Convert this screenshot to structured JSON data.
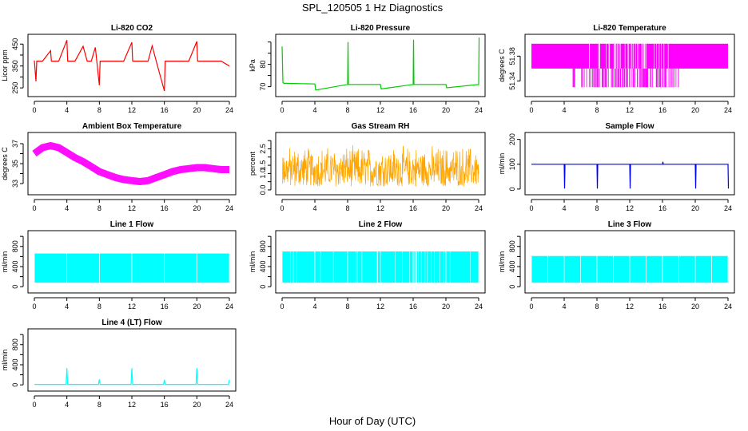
{
  "figure": {
    "title": "SPL_120505  1 Hz Diagnostics",
    "xlabel": "Hour of Day (UTC)"
  },
  "chart_data": [
    {
      "type": "line",
      "title": "Li-820 CO2",
      "ylabel": "Licor ppm",
      "color": "#ff0000",
      "xlim": [
        0,
        24
      ],
      "ylim": [
        225,
        480
      ],
      "xticks": [
        0,
        4,
        8,
        12,
        16,
        20,
        24
      ],
      "yticks": [
        250,
        300,
        350,
        400,
        450
      ],
      "yticklabels": [
        "250",
        "",
        "350",
        "",
        "450"
      ],
      "series": [
        {
          "x": [
            0,
            0.2,
            0.3,
            0.5,
            1,
            2,
            2.1,
            3,
            4,
            4.1,
            5,
            6,
            6.5,
            7,
            7.5,
            8,
            8.1,
            9,
            10,
            11,
            12,
            12.1,
            13,
            14,
            14.5,
            15,
            16,
            16.1,
            17,
            18,
            19,
            20,
            20.1,
            21,
            22,
            23,
            24
          ],
          "y": [
            375,
            280,
            372,
            372,
            372,
            420,
            372,
            372,
            468,
            372,
            372,
            440,
            372,
            372,
            435,
            262,
            372,
            372,
            372,
            372,
            458,
            372,
            372,
            372,
            442,
            372,
            236,
            372,
            372,
            372,
            372,
            462,
            372,
            372,
            372,
            372,
            350
          ]
        }
      ]
    },
    {
      "type": "line",
      "title": "Li-820 Pressure",
      "ylabel": "kPa",
      "color": "#00cc00",
      "xlim": [
        0,
        24
      ],
      "ylim": [
        67,
        92
      ],
      "xticks": [
        0,
        4,
        8,
        12,
        16,
        20,
        24
      ],
      "yticks": [
        70,
        75,
        80,
        85,
        90
      ],
      "yticklabels": [
        "70",
        "",
        "80",
        "",
        ""
      ],
      "series": [
        {
          "x": [
            0,
            0.1,
            0.2,
            0.5,
            4,
            4.1,
            8,
            8.05,
            8.1,
            12,
            12.1,
            16,
            16.05,
            16.1,
            20,
            20.1,
            24,
            24.05
          ],
          "y": [
            88,
            72,
            71.5,
            71.5,
            71.2,
            68.5,
            71.0,
            90,
            71.0,
            71.0,
            69,
            71.0,
            91,
            71.0,
            71.0,
            69.5,
            71.0,
            92
          ]
        }
      ]
    },
    {
      "type": "line",
      "title": "Li-820 Temperature",
      "ylabel": "degrees C",
      "color": "#ff00ff",
      "xlim": [
        0,
        24
      ],
      "ylim": [
        51.32,
        51.41
      ],
      "xticks": [
        0,
        4,
        8,
        12,
        16,
        20,
        24
      ],
      "yticks": [
        51.34,
        51.38
      ],
      "yticklabels": [
        "51.34",
        "51.38"
      ],
      "series": [
        {
          "x": [
            0,
            24
          ],
          "y": [
            51.36,
            51.4
          ],
          "band": true
        }
      ]
    },
    {
      "type": "line",
      "title": "Ambient Box Temperature",
      "ylabel": "degrees C",
      "color": "#ff00ff",
      "xlim": [
        0,
        24
      ],
      "ylim": [
        32.2,
        37.8
      ],
      "xticks": [
        0,
        4,
        8,
        12,
        16,
        20,
        24
      ],
      "yticks": [
        33,
        34,
        35,
        36,
        37
      ],
      "yticklabels": [
        "33",
        "",
        "35",
        "",
        "37"
      ],
      "series": [
        {
          "x": [
            0,
            1,
            2,
            3,
            4,
            5,
            6,
            7,
            8,
            9,
            10,
            11,
            12,
            13,
            14,
            15,
            16,
            17,
            18,
            19,
            20,
            21,
            22,
            23,
            24
          ],
          "y": [
            36.0,
            36.6,
            36.8,
            36.6,
            36.1,
            35.6,
            35.2,
            34.7,
            34.2,
            33.9,
            33.6,
            33.4,
            33.3,
            33.2,
            33.3,
            33.6,
            33.9,
            34.2,
            34.4,
            34.5,
            34.6,
            34.6,
            34.5,
            34.4,
            34.4
          ]
        }
      ]
    },
    {
      "type": "line",
      "title": "Gas Stream RH",
      "ylabel": "percent",
      "color": "#ffa500",
      "xlim": [
        0,
        24
      ],
      "ylim": [
        -0.1,
        3.3
      ],
      "xticks": [
        0,
        4,
        8,
        12,
        16,
        20,
        24
      ],
      "yticks": [
        0.0,
        0.5,
        1.0,
        1.5,
        2.0,
        2.5,
        3.0
      ],
      "yticklabels": [
        "0.0",
        "",
        "1.0",
        "1.5",
        "",
        "2.5",
        ""
      ],
      "series": [
        {
          "x": [
            0,
            24
          ],
          "y": [
            0.2,
            2.8
          ],
          "band": true
        }
      ]
    },
    {
      "type": "line",
      "title": "Sample Flow",
      "ylabel": "ml/min",
      "color": "#0000ff",
      "xlim": [
        0,
        24
      ],
      "ylim": [
        -10,
        215
      ],
      "xticks": [
        0,
        4,
        8,
        12,
        16,
        20,
        24
      ],
      "yticks": [
        0,
        100,
        200
      ],
      "yticklabels": [
        "0",
        "100",
        "200"
      ],
      "series": [
        {
          "x": [
            0,
            4,
            4.05,
            4.1,
            8,
            8.05,
            8.1,
            12,
            12.05,
            12.1,
            16,
            16.05,
            16.1,
            20,
            20.05,
            20.1,
            24,
            24.05
          ],
          "y": [
            100,
            100,
            2,
            100,
            100,
            2,
            100,
            100,
            2,
            100,
            100,
            110,
            100,
            100,
            2,
            100,
            100,
            2
          ]
        }
      ]
    },
    {
      "type": "line",
      "title": "Line 1 Flow",
      "ylabel": "ml/min",
      "color": "#00ffff",
      "xlim": [
        0,
        24
      ],
      "ylim": [
        -60,
        1050
      ],
      "xticks": [
        0,
        4,
        8,
        12,
        16,
        20,
        24
      ],
      "yticks": [
        0,
        200,
        400,
        600,
        800,
        1000
      ],
      "yticklabels": [
        "0",
        "",
        "400",
        "",
        "800",
        ""
      ],
      "series": [
        {
          "x": [
            0,
            24
          ],
          "y": [
            80,
            660
          ],
          "band": true
        }
      ]
    },
    {
      "type": "line",
      "title": "Line 2 Flow",
      "ylabel": "ml/min",
      "color": "#00ffff",
      "xlim": [
        0,
        24
      ],
      "ylim": [
        -60,
        1050
      ],
      "xticks": [
        0,
        4,
        8,
        12,
        16,
        20,
        24
      ],
      "yticks": [
        0,
        200,
        400,
        600,
        800,
        1000
      ],
      "yticklabels": [
        "0",
        "",
        "400",
        "",
        "800",
        ""
      ],
      "series": [
        {
          "x": [
            0,
            24
          ],
          "y": [
            80,
            700
          ],
          "band": true
        }
      ]
    },
    {
      "type": "line",
      "title": "Line 3 Flow",
      "ylabel": "ml/min",
      "color": "#00ffff",
      "xlim": [
        0,
        24
      ],
      "ylim": [
        -60,
        1050
      ],
      "xticks": [
        0,
        4,
        8,
        12,
        16,
        20,
        24
      ],
      "yticks": [
        0,
        200,
        400,
        600,
        800,
        1000
      ],
      "yticklabels": [
        "0",
        "",
        "400",
        "",
        "800",
        ""
      ],
      "series": [
        {
          "x": [
            0,
            24
          ],
          "y": [
            80,
            610
          ],
          "band": true
        }
      ]
    },
    {
      "type": "line",
      "title": "Line 4 (LT) Flow",
      "ylabel": "ml/min",
      "color": "#00ffff",
      "xlim": [
        0,
        24
      ],
      "ylim": [
        -60,
        1050
      ],
      "xticks": [
        0,
        4,
        8,
        12,
        16,
        20,
        24
      ],
      "yticks": [
        0,
        200,
        400,
        600,
        800,
        1000
      ],
      "yticklabels": [
        "0",
        "",
        "400",
        "",
        "800",
        ""
      ],
      "series": [
        {
          "x": [
            0,
            3.9,
            4,
            4.1,
            7.9,
            8,
            8.1,
            11.9,
            12,
            12.1,
            15.9,
            16,
            16.1,
            19.9,
            20,
            20.1,
            23.9,
            24
          ],
          "y": [
            10,
            10,
            330,
            10,
            10,
            110,
            10,
            10,
            330,
            10,
            10,
            100,
            10,
            10,
            330,
            10,
            10,
            100
          ]
        }
      ]
    }
  ]
}
